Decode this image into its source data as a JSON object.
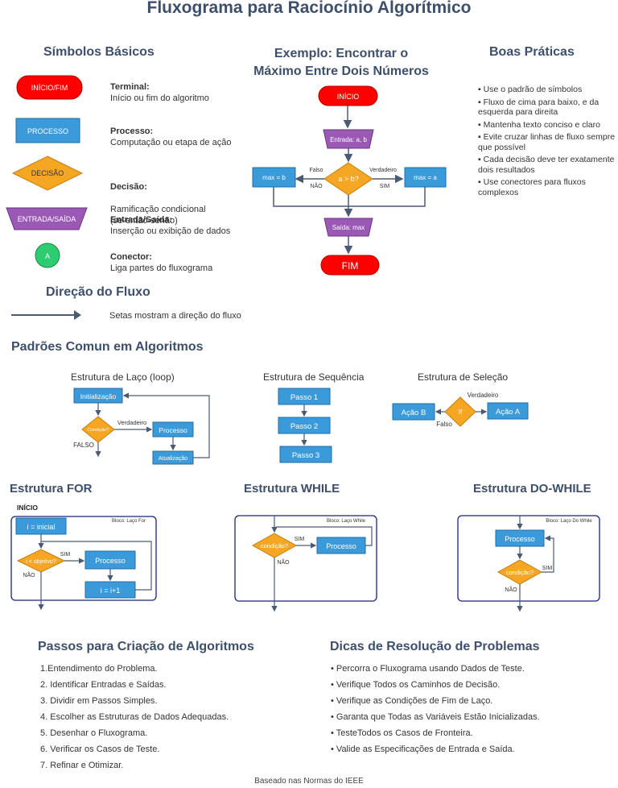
{
  "title": "Fluxograma para Raciocínio Algorítmico",
  "symbols": {
    "heading": "Símbolos Básicos",
    "items": [
      {
        "shape_text": "INÍCIO/FIM",
        "name": "Terminal:",
        "desc": "Início ou fim do algoritmo"
      },
      {
        "shape_text": "PROCESSO",
        "name": "Processo:",
        "desc": "Computação ou etapa de ação"
      },
      {
        "shape_text": "DECISÃO",
        "name": "Decisão:",
        "desc": "Ramificação condicional\n(se-então-senão)"
      },
      {
        "shape_text": "ENTRADA/SAÍDA",
        "name": "Entrada/Saída:",
        "desc": "Inserção ou exibição de dados"
      },
      {
        "shape_text": "A",
        "name": "Conector:",
        "desc": "Liga partes do fluxograma"
      }
    ]
  },
  "flow_direction": {
    "heading": "Direção do Fluxo",
    "desc": "Setas mostram a direção do fluxo"
  },
  "example": {
    "heading": "Exemplo: Encontrar o\nMáximo Entre Dois Números",
    "start": "INÍCIO",
    "input": "Entrada: a, b",
    "decision": "a > b?",
    "false_label": "Falso",
    "true_label": "Verdadeiro",
    "no_label": "NÃO",
    "yes_label": "SIM",
    "left_box": "max = b",
    "right_box": "max = a",
    "output": "Saída: max",
    "end": "FIM"
  },
  "best_practices": {
    "heading": "Boas Práticas",
    "items": [
      "Use o padrão de símbolos",
      "Fluxo de cima para baixo, e da esquerda para direita",
      "Mantenha texto conciso e claro",
      "Evite cruzar linhas de fluxo sempre que possível",
      "Cada decisão deve ter exatamente dois resultados",
      "Use conectores para fluxos complexos"
    ]
  },
  "patterns": {
    "heading": "Padrões Comun em Algoritmos",
    "loop": {
      "caption": "Estrutura de Laço (loop)",
      "init": "Initialização",
      "cond": "Condição?",
      "true_label": "Verdadeiro",
      "false_label": "FALSO",
      "process": "Processo",
      "update": "Atualização"
    },
    "sequence": {
      "caption": "Estrutura de Sequência",
      "steps": [
        "Passo 1",
        "Passo 2",
        "Passo 3"
      ]
    },
    "selection": {
      "caption": "Estrutura de Seleção",
      "cond": "If",
      "true_label": "Verdadeiro",
      "false_label": "Falso",
      "action_a": "Ação A",
      "action_b": "Ação B"
    }
  },
  "for_struct": {
    "heading": "Estrutura FOR",
    "start": "INÍCIO",
    "block": "Bloco: Laço For",
    "init": "i = inicial",
    "cond": "i < objetivo?",
    "yes": "SIM",
    "no": "NÃO",
    "process": "Processo",
    "incr": "i = i+1"
  },
  "while_struct": {
    "heading": "Estrutura WHILE",
    "block": "Bloco: Laço While",
    "cond": "condição?",
    "yes": "SIM",
    "no": "NÃO",
    "process": "Processo"
  },
  "dowhile_struct": {
    "heading": "Estrutura DO-WHILE",
    "block": "Bloco: Laço Do While",
    "process": "Processo",
    "cond": "condição?",
    "yes": "SIM",
    "no": "NÃO"
  },
  "steps": {
    "heading": "Passos para Criação de Algoritmos",
    "items": [
      "1.Entendimento do Problema.",
      "2. Identificar Entradas e Saídas.",
      "3. Dividir em Passos Simples.",
      "4. Escolher as Estruturas de Dados Adequadas.",
      "5. Desenhar o Fluxograma.",
      "6. Verificar os Casos de Teste.",
      "7. Refinar e Otimizar."
    ]
  },
  "tips": {
    "heading": "Dicas de Resolução de Problemas",
    "items": [
      "Percorra o Fluxograma usando Dados de Teste.",
      "Verifique Todos os Caminhos de Decisão.",
      "Verifique as Condições de Fim de Laço.",
      "Garanta que Todas as Variáveis Estão Inicializadas.",
      "TesteTodos os Casos de Fronteira.",
      "Valide as Especificações de Entrada e Saída."
    ]
  },
  "footer": "Baseado nas Normas do IEEE",
  "colors": {
    "terminal": "#ff0000",
    "process": "#3b9ad9",
    "decision": "#f5a623",
    "io": "#9b59b6",
    "connector": "#2ecc71",
    "heading": "#3d4f6b",
    "arrow": "#4a5a72"
  }
}
